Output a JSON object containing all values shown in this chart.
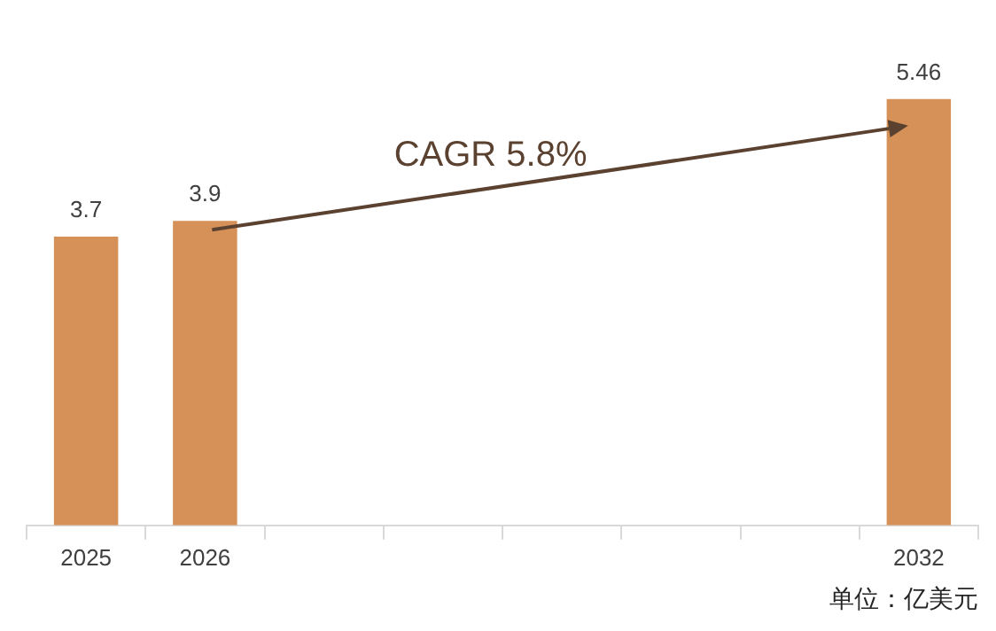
{
  "chart_data": {
    "type": "bar",
    "categories": [
      "2025",
      "2026",
      null,
      null,
      null,
      null,
      null,
      "2032"
    ],
    "values": [
      3.7,
      3.9,
      null,
      null,
      null,
      null,
      null,
      5.46
    ],
    "color": "#d69158",
    "data_labels": true,
    "grid": false,
    "tick_labels": "x",
    "annotations": [
      "CAGR 5.8%",
      "单位：亿美元"
    ]
  }
}
